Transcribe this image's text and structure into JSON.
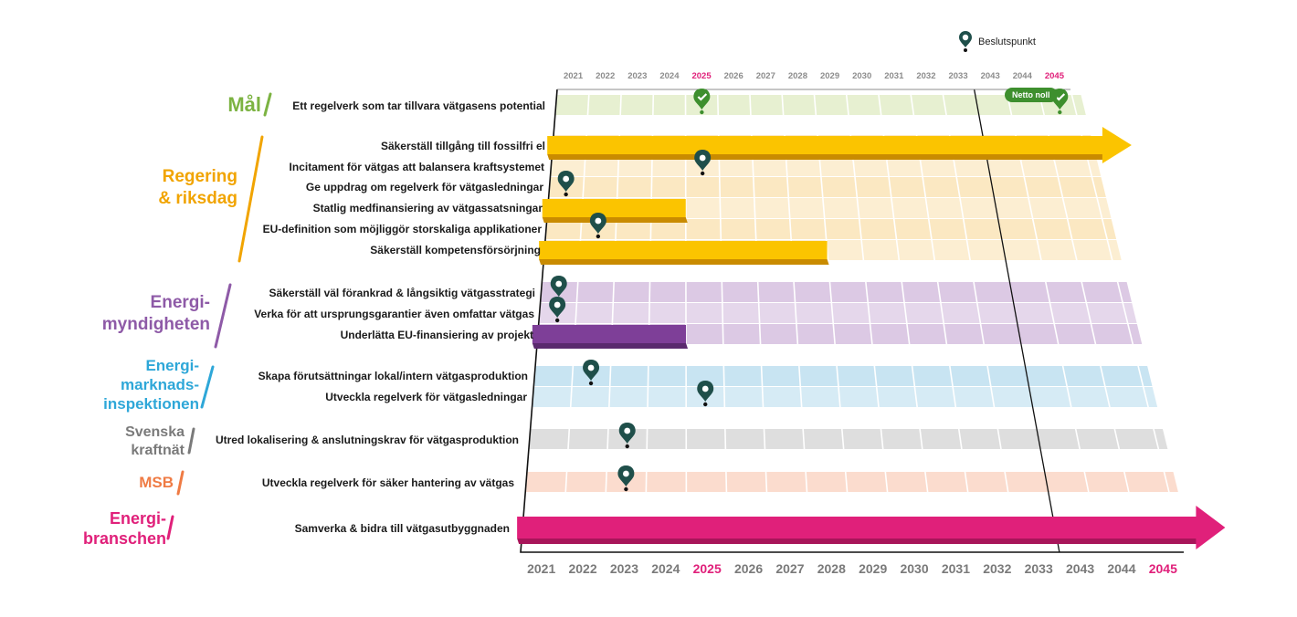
{
  "legend": {
    "icon": "decision-pin-icon",
    "label": "Beslutspunkt"
  },
  "badge": {
    "label": "Netto noll"
  },
  "colors": {
    "mal": "#7cb342",
    "regering": "#f1a400",
    "energimyndigheten": "#8e5aa7",
    "ei": "#2ea7d8",
    "svk": "#7a7a7a",
    "msb": "#ef7b44",
    "energibranschen": "#e0207a",
    "accent_year": "#e0207a",
    "pin": "#1f4f4a"
  },
  "years_top": [
    "2021",
    "2022",
    "2023",
    "2024",
    "2025",
    "2026",
    "2027",
    "2028",
    "2029",
    "2030",
    "2031",
    "2032",
    "2033",
    "2043",
    "2044",
    "2045"
  ],
  "years_bottom": [
    "2021",
    "2022",
    "2023",
    "2024",
    "2025",
    "2026",
    "2027",
    "2028",
    "2029",
    "2030",
    "2031",
    "2032",
    "2033",
    "2043",
    "2044",
    "2045"
  ],
  "groups": [
    {
      "key": "mal",
      "title": "Mål",
      "rows": [
        {
          "label": "Ett regelverk som tar tillvara vätgasens potential",
          "pins": [
            "2025",
            "2045"
          ]
        }
      ]
    },
    {
      "key": "regering",
      "title": "Regering\n& riksdag",
      "rows": [
        {
          "label": "Säkerställ tillgång till fossilfri el",
          "bar": [
            "2021",
            "2045+"
          ]
        },
        {
          "label": "Incitament för vätgas att balansera kraftsystemet",
          "pins": [
            "2025"
          ]
        },
        {
          "label": "Ge uppdrag om regelverk för vätgasledningar",
          "pins": [
            "2021"
          ]
        },
        {
          "label": "Statlig medfinansiering av vätgassatsningar",
          "bar": [
            "2021",
            "2024"
          ]
        },
        {
          "label": "EU-definition som möjliggör storskaliga applikationer",
          "pins": [
            "2022"
          ]
        },
        {
          "label": "Säkerställ kompetensförsörjning",
          "bar": [
            "2021",
            "2028"
          ]
        }
      ]
    },
    {
      "key": "energimyndigheten",
      "title": "Energi-\nmyndigheten",
      "rows": [
        {
          "label": "Säkerställ väl förankrad & långsiktig vätgasstrategi",
          "pins": [
            "2021"
          ]
        },
        {
          "label": "Verka för att ursprungsgarantier även omfattar vätgas",
          "pins": [
            "2021"
          ]
        },
        {
          "label": "Underlätta EU-finansiering av projekt",
          "bar": [
            "2021",
            "2024"
          ]
        }
      ]
    },
    {
      "key": "ei",
      "title": "Energi-\nmarknads-\ninspektionen",
      "rows": [
        {
          "label": "Skapa förutsättningar lokal/intern vätgasproduktion",
          "pins": [
            "2022"
          ]
        },
        {
          "label": "Utveckla regelverk för vätgasledningar",
          "pins": [
            "2025"
          ]
        }
      ]
    },
    {
      "key": "svk",
      "title": "Svenska\nkraftnät",
      "rows": [
        {
          "label": "Utred lokalisering & anslutningskrav för vätgasproduktion",
          "pins": [
            "2023"
          ]
        }
      ]
    },
    {
      "key": "msb",
      "title": "MSB",
      "rows": [
        {
          "label": "Utveckla regelverk för säker hantering av vätgas",
          "pins": [
            "2023"
          ]
        }
      ]
    },
    {
      "key": "energibranschen",
      "title": "Energi-\nbranschen",
      "rows": [
        {
          "label": "Samverka & bidra till vätgasutbyggnaden",
          "bar": [
            "2021",
            "2045+"
          ]
        }
      ]
    }
  ]
}
